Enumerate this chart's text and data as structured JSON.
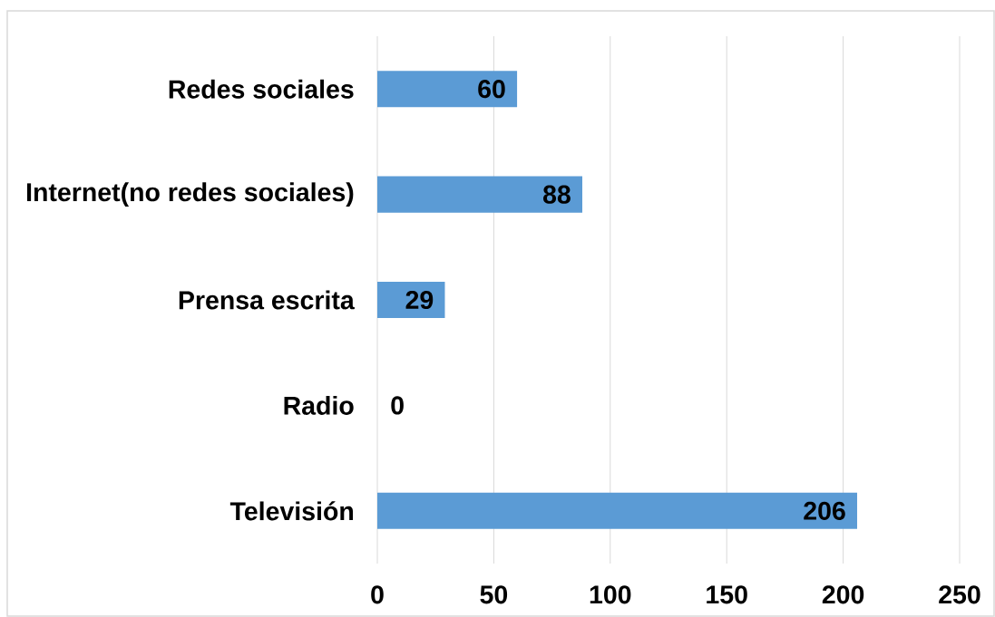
{
  "chart_data": {
    "type": "bar",
    "orientation": "horizontal",
    "categories": [
      "Redes sociales",
      "Internet(no redes sociales)",
      "Prensa escrita",
      "Radio",
      "Televisión"
    ],
    "values": [
      60,
      88,
      29,
      0,
      206
    ],
    "color": "#5b9bd5",
    "xlim": [
      0,
      250
    ],
    "xticks": [
      0,
      50,
      100,
      150,
      200,
      250
    ],
    "grid": "x",
    "data_labels": true
  }
}
